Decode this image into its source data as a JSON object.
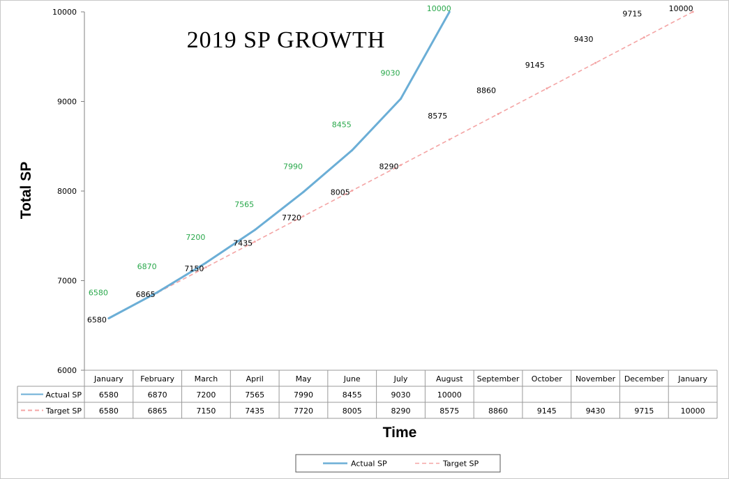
{
  "chart_data": {
    "type": "line",
    "title": "2019 SP GROWTH",
    "xlabel": "Time",
    "ylabel": "Total SP",
    "ylim": [
      6000,
      10000
    ],
    "yticks": [
      "6000",
      "7000",
      "8000",
      "9000",
      "10000"
    ],
    "categories": [
      "January",
      "February",
      "March",
      "April",
      "May",
      "June",
      "July",
      "August",
      "September",
      "October",
      "November",
      "December",
      "January"
    ],
    "grid": false,
    "legend": "bottom",
    "data_table": true,
    "series": [
      {
        "name": "Actual SP",
        "color": "#6baed6",
        "style": "solid",
        "values": [
          6580,
          6870,
          7200,
          7565,
          7990,
          8455,
          9030,
          10000,
          null,
          null,
          null,
          null,
          null
        ],
        "labels": [
          "6580",
          "6870",
          "7200",
          "7565",
          "7990",
          "8455",
          "9030",
          "10000",
          "",
          "",
          "",
          "",
          ""
        ]
      },
      {
        "name": "Target SP",
        "color": "#f4a4a4",
        "style": "dashed",
        "values": [
          6580,
          6865,
          7150,
          7435,
          7720,
          8005,
          8290,
          8575,
          8860,
          9145,
          9430,
          9715,
          10000
        ],
        "labels": [
          "6580",
          "6865",
          "7150",
          "7435",
          "7720",
          "8005",
          "8290",
          "8575",
          "8860",
          "9145",
          "9430",
          "9715",
          "10000"
        ]
      }
    ]
  }
}
